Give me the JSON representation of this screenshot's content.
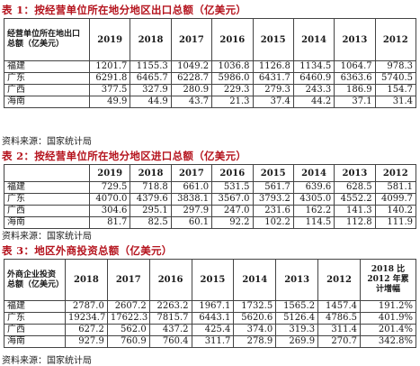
{
  "tables": [
    {
      "caption": "表 1：按经营单位所在地分地区出口总额（亿美元）",
      "corner": "经营单位所在地出口总额（亿美元）",
      "years": [
        "2019",
        "2018",
        "2017",
        "2016",
        "2015",
        "2014",
        "2013",
        "2012"
      ],
      "rows": [
        {
          "region": "福建",
          "values": [
            "1201.7",
            "1155.3",
            "1049.2",
            "1036.8",
            "1126.8",
            "1134.5",
            "1064.7",
            "978.3"
          ]
        },
        {
          "region": "广东",
          "values": [
            "6291.8",
            "6465.7",
            "6228.7",
            "5986.0",
            "6431.7",
            "6460.9",
            "6363.6",
            "5740.5"
          ]
        },
        {
          "region": "广西",
          "values": [
            "377.5",
            "327.9",
            "280.9",
            "229.3",
            "279.3",
            "243.3",
            "186.9",
            "154.7"
          ]
        },
        {
          "region": "海南",
          "values": [
            "49.9",
            "44.9",
            "43.7",
            "21.3",
            "37.4",
            "44.2",
            "37.1",
            "31.4"
          ]
        }
      ],
      "source": "资料来源：国家统计局"
    },
    {
      "caption": "表 2：按经营单位所在地分地区进口总额（亿美元）",
      "years": [
        "2019",
        "2018",
        "2017",
        "2016",
        "2015",
        "2014",
        "2013",
        "2012"
      ],
      "rows": [
        {
          "region": "福建",
          "values": [
            "729.5",
            "718.8",
            "661.0",
            "531.5",
            "561.7",
            "639.6",
            "628.5",
            "581.1"
          ]
        },
        {
          "region": "广东",
          "values": [
            "4070.0",
            "4379.6",
            "3838.1",
            "3567.0",
            "3793.2",
            "4305.0",
            "4552.2",
            "4099.7"
          ]
        },
        {
          "region": "广西",
          "values": [
            "304.6",
            "295.1",
            "297.9",
            "247.0",
            "231.6",
            "162.2",
            "141.3",
            "140.2"
          ]
        },
        {
          "region": "海南",
          "values": [
            "81.7",
            "82.5",
            "60.1",
            "92.2",
            "102.2",
            "114.5",
            "112.8",
            "111.9"
          ]
        }
      ],
      "source": "资料来源：国家统计局"
    },
    {
      "caption": "表 3：地区外商投资总额（亿美元）",
      "corner": "外商企业投资总额（亿美元）",
      "years": [
        "2018",
        "2017",
        "2016",
        "2015",
        "2014",
        "2013",
        "2012"
      ],
      "growth_header": "2018 比 2012 年累计增幅",
      "rows": [
        {
          "region": "福建",
          "values": [
            "2787.0",
            "2607.2",
            "2263.2",
            "1967.1",
            "1732.5",
            "1565.2",
            "1457.4"
          ],
          "growth": "191.2%"
        },
        {
          "region": "广东",
          "values": [
            "19234.7",
            "17622.3",
            "7815.7",
            "6443.1",
            "5620.6",
            "5126.4",
            "4786.5"
          ],
          "growth": "401.9%"
        },
        {
          "region": "广西",
          "values": [
            "627.2",
            "562.0",
            "437.2",
            "425.4",
            "374.0",
            "319.3",
            "311.4"
          ],
          "growth": "201.4%"
        },
        {
          "region": "海南",
          "values": [
            "927.9",
            "760.9",
            "760.4",
            "311.7",
            "278.9",
            "269.9",
            "270.7"
          ],
          "growth": "342.8%"
        }
      ],
      "source": "资料来源：国家统计局"
    }
  ]
}
